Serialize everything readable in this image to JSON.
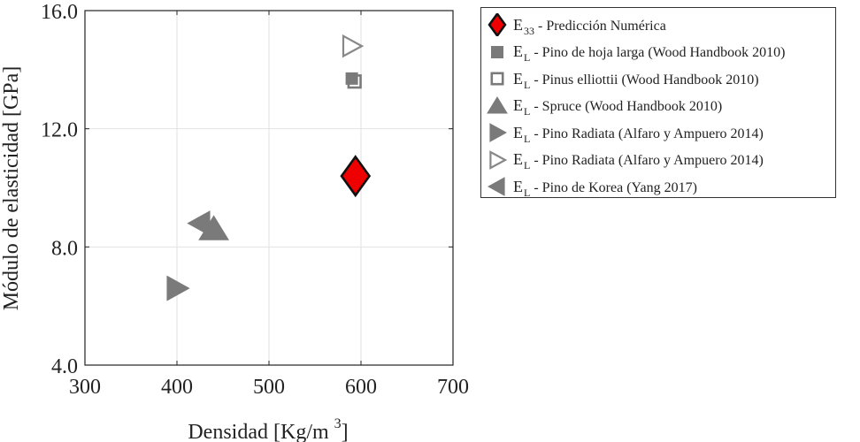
{
  "chart_data": {
    "type": "scatter",
    "xlabel": "Densidad [Kg/m",
    "xlabel_sup": "3",
    "xlabel_end": "]",
    "ylabel": "Módulo de elasticidad [GPa]",
    "xlim": [
      300,
      700
    ],
    "ylim": [
      4.0,
      16.0
    ],
    "xticks": [
      300,
      400,
      500,
      600,
      700
    ],
    "xtick_labels": [
      "300",
      "400",
      "500",
      "600",
      "700"
    ],
    "yticks": [
      4.0,
      8.0,
      12.0,
      16.0
    ],
    "ytick_labels": [
      "4.0",
      "8.0",
      "12.0",
      "16.0"
    ],
    "grid": true,
    "legend_position": "outside-right-top",
    "series": [
      {
        "symbol": "E",
        "subscript": "33",
        "name": "- Predicción Numérica",
        "marker": "diamond",
        "color": "#ee0000",
        "edge": "#111111",
        "x": 594,
        "y": 10.4
      },
      {
        "symbol": "E",
        "subscript": "L",
        "name": "- Pino de hoja larga (Wood Handbook 2010)",
        "marker": "square-filled",
        "color": "#7a7a7a",
        "x": 590,
        "y": 13.7
      },
      {
        "symbol": "E",
        "subscript": "L",
        "name": "- Pinus elliottii (Wood Handbook 2010)",
        "marker": "square-open",
        "color": "#7a7a7a",
        "x": 593,
        "y": 13.6
      },
      {
        "symbol": "E",
        "subscript": "L",
        "name": "- Spruce (Wood Handbook 2010)",
        "marker": "triangle-up",
        "color": "#7a7a7a",
        "x": 440,
        "y": 8.6
      },
      {
        "symbol": "E",
        "subscript": "L",
        "name": "- Pino Radiata (Alfaro y Ampuero 2014)",
        "marker": "triangle-right-filled",
        "color": "#7a7a7a",
        "x": 400,
        "y": 6.6
      },
      {
        "symbol": "E",
        "subscript": "L",
        "name": "- Pino Radiata (Alfaro y Ampuero 2014)",
        "marker": "triangle-right-open",
        "color": "#7a7a7a",
        "x": 590,
        "y": 14.8
      },
      {
        "symbol": "E",
        "subscript": "L",
        "name": "- Pino de Korea (Yang 2017)",
        "marker": "triangle-left",
        "color": "#7a7a7a",
        "x": 425,
        "y": 8.8
      }
    ]
  }
}
